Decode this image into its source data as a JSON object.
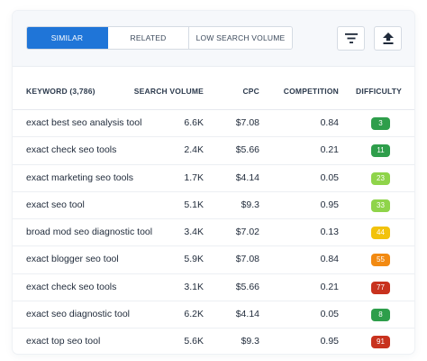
{
  "tabs": [
    {
      "label": "SIMILAR",
      "active": true
    },
    {
      "label": "RELATED",
      "active": false
    },
    {
      "label": "LOW SEARCH VOLUME",
      "active": false
    }
  ],
  "toolbar": {
    "filter_icon": "filter-lines-icon",
    "export_icon": "upload-arrow-icon"
  },
  "table": {
    "headers": {
      "keyword": "KEYWORD (3,786)",
      "search_volume": "SEARCH VOLUME",
      "cpc": "CPC",
      "competition": "COMPETITION",
      "difficulty": "DIFFICULTY"
    },
    "rows": [
      {
        "keyword": "exact best seo analysis tool",
        "volume": "6.6K",
        "cpc": "$7.08",
        "competition": "0.84",
        "difficulty": "3",
        "difficulty_color": "#2e9e4b"
      },
      {
        "keyword": "exact check seo tools",
        "volume": "2.4K",
        "cpc": "$5.66",
        "competition": "0.21",
        "difficulty": "11",
        "difficulty_color": "#2e9e4b"
      },
      {
        "keyword": "exact marketing seo tools",
        "volume": "1.7K",
        "cpc": "$4.14",
        "competition": "0.05",
        "difficulty": "23",
        "difficulty_color": "#8fd44a"
      },
      {
        "keyword": "exact seo tool",
        "volume": "5.1K",
        "cpc": "$9.3",
        "competition": "0.95",
        "difficulty": "33",
        "difficulty_color": "#8fd44a"
      },
      {
        "keyword": "broad mod seo diagnostic tool",
        "volume": "3.4K",
        "cpc": "$7.02",
        "competition": "0.13",
        "difficulty": "44",
        "difficulty_color": "#f2c20c"
      },
      {
        "keyword": "exact blogger seo tool",
        "volume": "5.9K",
        "cpc": "$7.08",
        "competition": "0.84",
        "difficulty": "55",
        "difficulty_color": "#f28a12"
      },
      {
        "keyword": "exact check seo tools",
        "volume": "3.1K",
        "cpc": "$5.66",
        "competition": "0.21",
        "difficulty": "77",
        "difficulty_color": "#c8321e"
      },
      {
        "keyword": "exact seo diagnostic tool",
        "volume": "6.2K",
        "cpc": "$4.14",
        "competition": "0.05",
        "difficulty": "8",
        "difficulty_color": "#2e9e4b"
      },
      {
        "keyword": "exact top seo tool",
        "volume": "5.6K",
        "cpc": "$9.3",
        "competition": "0.95",
        "difficulty": "91",
        "difficulty_color": "#c8321e"
      }
    ]
  }
}
